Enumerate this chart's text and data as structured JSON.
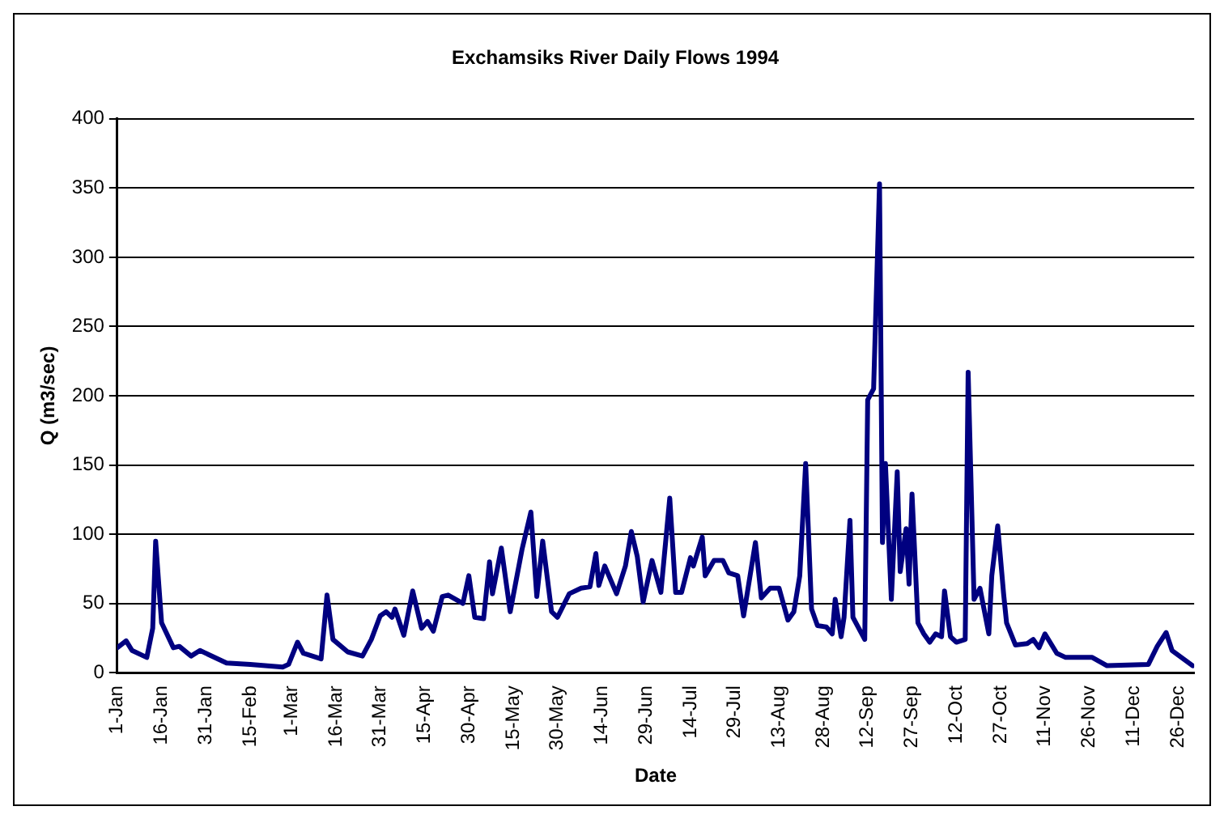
{
  "chart_data": {
    "type": "line",
    "title": "Exchamsiks River Daily Flows 1994",
    "xlabel": "Date",
    "ylabel": "Q (m3/sec)",
    "x": [
      "1994-01-01",
      "1994-01-04",
      "1994-01-06",
      "1994-01-11",
      "1994-01-13",
      "1994-01-14",
      "1994-01-16",
      "1994-01-20",
      "1994-01-22",
      "1994-01-26",
      "1994-01-29",
      "1994-02-07",
      "1994-02-15",
      "1994-02-26",
      "1994-02-28",
      "1994-03-03",
      "1994-03-05",
      "1994-03-11",
      "1994-03-13",
      "1994-03-15",
      "1994-03-20",
      "1994-03-25",
      "1994-03-28",
      "1994-03-31",
      "1994-04-02",
      "1994-04-04",
      "1994-04-05",
      "1994-04-08",
      "1994-04-11",
      "1994-04-14",
      "1994-04-16",
      "1994-04-18",
      "1994-04-21",
      "1994-04-23",
      "1994-04-28",
      "1994-04-30",
      "1994-05-02",
      "1994-05-05",
      "1994-05-07",
      "1994-05-08",
      "1994-05-11",
      "1994-05-14",
      "1994-05-18",
      "1994-05-21",
      "1994-05-23",
      "1994-05-25",
      "1994-05-28",
      "1994-05-30",
      "1994-06-03",
      "1994-06-07",
      "1994-06-10",
      "1994-06-12",
      "1994-06-13",
      "1994-06-15",
      "1994-06-19",
      "1994-06-22",
      "1994-06-24",
      "1994-06-26",
      "1994-06-28",
      "1994-07-01",
      "1994-07-04",
      "1994-07-07",
      "1994-07-09",
      "1994-07-11",
      "1994-07-14",
      "1994-07-15",
      "1994-07-18",
      "1994-07-19",
      "1994-07-22",
      "1994-07-25",
      "1994-07-27",
      "1994-07-30",
      "1994-08-01",
      "1994-08-05",
      "1994-08-07",
      "1994-08-10",
      "1994-08-13",
      "1994-08-16",
      "1994-08-18",
      "1994-08-20",
      "1994-08-22",
      "1994-08-24",
      "1994-08-26",
      "1994-08-29",
      "1994-08-31",
      "1994-09-01",
      "1994-09-03",
      "1994-09-04",
      "1994-09-06",
      "1994-09-07",
      "1994-09-11",
      "1994-09-12",
      "1994-09-14",
      "1994-09-16",
      "1994-09-17",
      "1994-09-18",
      "1994-09-20",
      "1994-09-22",
      "1994-09-23",
      "1994-09-25",
      "1994-09-26",
      "1994-09-27",
      "1994-09-29",
      "1994-10-01",
      "1994-10-03",
      "1994-10-05",
      "1994-10-07",
      "1994-10-08",
      "1994-10-10",
      "1994-10-12",
      "1994-10-15",
      "1994-10-16",
      "1994-10-18",
      "1994-10-20",
      "1994-10-23",
      "1994-10-24",
      "1994-10-26",
      "1994-10-28",
      "1994-10-29",
      "1994-11-01",
      "1994-11-05",
      "1994-11-07",
      "1994-11-09",
      "1994-11-11",
      "1994-11-15",
      "1994-11-18",
      "1994-11-27",
      "1994-12-02",
      "1994-12-16",
      "1994-12-19",
      "1994-12-22",
      "1994-12-24",
      "1994-12-31"
    ],
    "series": [
      {
        "color": "#000080",
        "values": [
          18,
          23,
          16,
          11,
          32,
          95,
          36,
          18,
          19,
          12,
          16,
          7,
          6,
          4,
          6,
          22,
          14,
          10,
          56,
          24,
          15,
          12,
          24,
          41,
          44,
          40,
          46,
          27,
          59,
          32,
          37,
          30,
          55,
          56,
          50,
          70,
          40,
          39,
          80,
          57,
          90,
          44,
          89,
          116,
          55,
          95,
          44,
          40,
          57,
          61,
          62,
          86,
          63,
          77,
          57,
          77,
          102,
          84,
          51,
          81,
          58,
          126,
          58,
          58,
          83,
          77,
          98,
          70,
          81,
          81,
          72,
          70,
          41,
          94,
          54,
          61,
          61,
          38,
          44,
          70,
          151,
          46,
          34,
          33,
          28,
          53,
          26,
          40,
          110,
          40,
          24,
          197,
          205,
          353,
          94,
          151,
          53,
          145,
          73,
          104,
          64,
          129,
          36,
          28,
          22,
          28,
          26,
          59,
          26,
          22,
          24,
          217,
          53,
          61,
          28,
          70,
          106,
          57,
          36,
          20,
          21,
          24,
          18,
          28,
          14,
          11,
          11,
          5,
          6,
          19,
          29,
          16,
          5
        ]
      }
    ],
    "xlim": [
      "1994-01-01",
      "1994-12-31"
    ],
    "xticks": [
      {
        "value": "1994-01-01",
        "label": "1-Jan"
      },
      {
        "value": "1994-01-16",
        "label": "16-Jan"
      },
      {
        "value": "1994-01-31",
        "label": "31-Jan"
      },
      {
        "value": "1994-02-15",
        "label": "15-Feb"
      },
      {
        "value": "1994-03-01",
        "label": "1-Mar"
      },
      {
        "value": "1994-03-16",
        "label": "16-Mar"
      },
      {
        "value": "1994-03-31",
        "label": "31-Mar"
      },
      {
        "value": "1994-04-15",
        "label": "15-Apr"
      },
      {
        "value": "1994-04-30",
        "label": "30-Apr"
      },
      {
        "value": "1994-05-15",
        "label": "15-May"
      },
      {
        "value": "1994-05-30",
        "label": "30-May"
      },
      {
        "value": "1994-06-14",
        "label": "14-Jun"
      },
      {
        "value": "1994-06-29",
        "label": "29-Jun"
      },
      {
        "value": "1994-07-14",
        "label": "14-Jul"
      },
      {
        "value": "1994-07-29",
        "label": "29-Jul"
      },
      {
        "value": "1994-08-13",
        "label": "13-Aug"
      },
      {
        "value": "1994-08-28",
        "label": "28-Aug"
      },
      {
        "value": "1994-09-12",
        "label": "12-Sep"
      },
      {
        "value": "1994-09-27",
        "label": "27-Sep"
      },
      {
        "value": "1994-10-12",
        "label": "12-Oct"
      },
      {
        "value": "1994-10-27",
        "label": "27-Oct"
      },
      {
        "value": "1994-11-11",
        "label": "11-Nov"
      },
      {
        "value": "1994-11-26",
        "label": "26-Nov"
      },
      {
        "value": "1994-12-11",
        "label": "11-Dec"
      },
      {
        "value": "1994-12-26",
        "label": "26-Dec"
      }
    ],
    "ylim": [
      0,
      400
    ],
    "yticks": [
      0,
      50,
      100,
      150,
      200,
      250,
      300,
      350,
      400
    ],
    "grid": "y",
    "legend": false,
    "marker": "none",
    "line_style": "solid"
  }
}
